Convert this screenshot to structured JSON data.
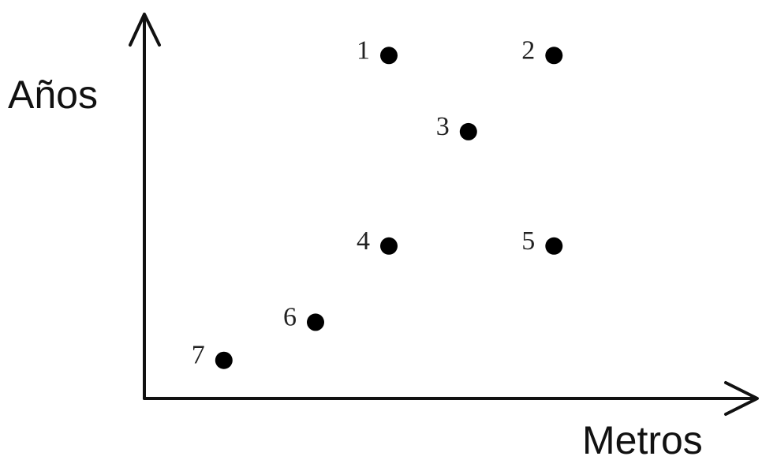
{
  "chart_data": {
    "type": "scatter",
    "title": "",
    "xlabel": "Metros",
    "ylabel": "Años",
    "xlim": [
      0,
      10
    ],
    "ylim": [
      0,
      10
    ],
    "grid": false,
    "points": [
      {
        "label": "1",
        "x": 4.0,
        "y": 9.0
      },
      {
        "label": "2",
        "x": 6.7,
        "y": 9.0
      },
      {
        "label": "3",
        "x": 5.3,
        "y": 7.0
      },
      {
        "label": "4",
        "x": 4.0,
        "y": 4.0
      },
      {
        "label": "5",
        "x": 6.7,
        "y": 4.0
      },
      {
        "label": "6",
        "x": 2.8,
        "y": 2.0
      },
      {
        "label": "7",
        "x": 1.3,
        "y": 1.0
      }
    ]
  }
}
